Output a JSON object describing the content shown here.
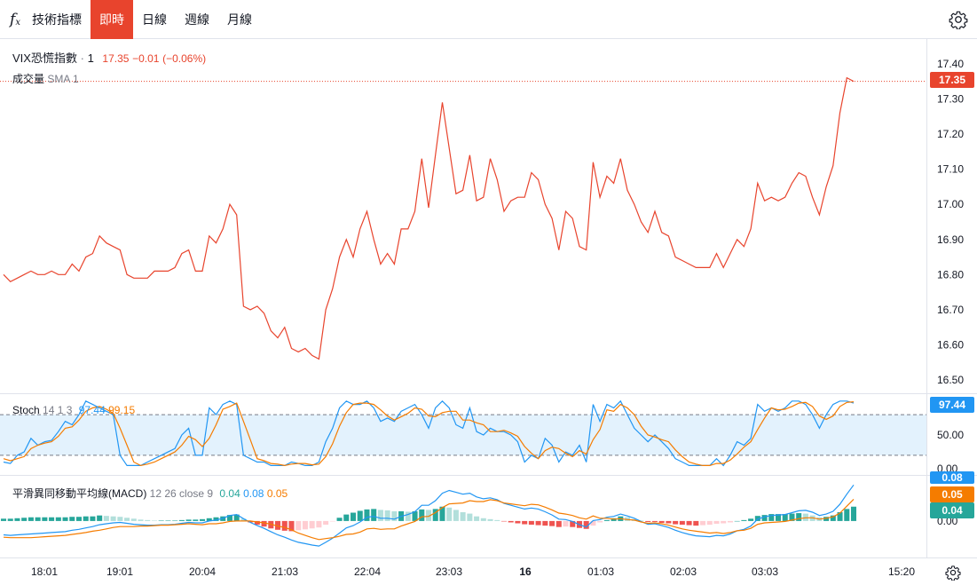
{
  "toolbar": {
    "fx_icon": "fx-icon",
    "indicators_label": "技術指標",
    "timeframes": [
      {
        "label": "即時",
        "active": true
      },
      {
        "label": "日線",
        "active": false
      },
      {
        "label": "週線",
        "active": false
      },
      {
        "label": "月線",
        "active": false
      }
    ],
    "settings_icon": "gear-icon"
  },
  "header": {
    "symbol": "VIX恐慌指數",
    "separator": "·",
    "interval": "1",
    "last": "17.35",
    "change": "−0.01",
    "change_pct": "(−0.06%)",
    "volume_label": "成交量",
    "volume_sma": "SMA 1"
  },
  "stoch": {
    "label": "Stoch",
    "params": "14 1 3",
    "k_value": "97.44",
    "d_value": "99.15",
    "tag": "97.44"
  },
  "macd": {
    "label": "平滑異同移動平均線(MACD)",
    "params": "12 26 close 9",
    "hist_value": "0.04",
    "macd_value": "0.08",
    "signal_value": "0.05",
    "tags": [
      "0.08",
      "0.05",
      "0.04"
    ]
  },
  "price_tag": "17.35",
  "colors": {
    "price_line": "#e8442d",
    "stoch_k": "#2196f3",
    "stoch_d": "#f57c00",
    "macd_line": "#2196f3",
    "signal_line": "#f57c00",
    "hist_up_strong": "#26a69a",
    "hist_up_weak": "#b2dfdb",
    "hist_down_strong": "#ef5350",
    "hist_down_weak": "#ffcdd2",
    "stoch_band": "#e3f2fd"
  },
  "chart_data": [
    {
      "type": "line",
      "title": "",
      "series": [
        {
          "name": "VIX恐慌指數",
          "values": [
            16.8,
            16.78,
            16.79,
            16.8,
            16.81,
            16.8,
            16.8,
            16.81,
            16.8,
            16.8,
            16.83,
            16.81,
            16.85,
            16.86,
            16.91,
            16.89,
            16.88,
            16.87,
            16.8,
            16.79,
            16.79,
            16.79,
            16.81,
            16.81,
            16.81,
            16.82,
            16.86,
            16.87,
            16.81,
            16.81,
            16.91,
            16.89,
            16.93,
            17.0,
            16.97,
            16.71,
            16.7,
            16.71,
            16.69,
            16.64,
            16.62,
            16.65,
            16.59,
            16.58,
            16.59,
            16.57,
            16.56,
            16.7,
            16.76,
            16.85,
            16.9,
            16.85,
            16.93,
            16.98,
            16.9,
            16.83,
            16.86,
            16.83,
            16.93,
            16.93,
            16.98,
            17.13,
            16.99,
            17.14,
            17.29,
            17.16,
            17.03,
            17.04,
            17.14,
            17.01,
            17.02,
            17.13,
            17.07,
            16.98,
            17.01,
            17.02,
            17.02,
            17.09,
            17.07,
            17.0,
            16.96,
            16.87,
            16.98,
            16.96,
            16.88,
            16.87,
            17.12,
            17.02,
            17.08,
            17.06,
            17.13,
            17.04,
            17.0,
            16.95,
            16.92,
            16.98,
            16.92,
            16.91,
            16.85,
            16.84,
            16.83,
            16.82,
            16.82,
            16.82,
            16.86,
            16.82,
            16.86,
            16.9,
            16.88,
            16.93,
            17.06,
            17.01,
            17.02,
            17.01,
            17.02,
            17.06,
            17.09,
            17.08,
            17.02,
            16.97,
            17.05,
            17.11,
            17.26,
            17.36,
            17.35
          ]
        }
      ],
      "ylim": [
        16.47,
        17.45
      ],
      "y_ticks": [
        "17.40",
        "17.30",
        "17.20",
        "17.10",
        "17.00",
        "16.90",
        "16.80",
        "16.70",
        "16.60",
        "16.50"
      ],
      "x_ticks": [
        "18:01",
        "19:01",
        "20:04",
        "21:03",
        "22:04",
        "23:03",
        "16",
        "01:03",
        "02:03",
        "03:03",
        "15:20"
      ],
      "last_value": 17.35
    },
    {
      "type": "line",
      "title": "Stoch 14 1 3",
      "ylim": [
        -5,
        105
      ],
      "y_ticks": [
        "50.00",
        "0.00"
      ],
      "band": [
        20,
        80
      ],
      "series": [
        {
          "name": "K",
          "values": [
            10,
            8,
            20,
            25,
            45,
            35,
            40,
            42,
            55,
            70,
            65,
            80,
            100,
            95,
            90,
            85,
            80,
            20,
            5,
            5,
            5,
            10,
            15,
            20,
            25,
            30,
            50,
            60,
            20,
            20,
            90,
            80,
            95,
            100,
            95,
            20,
            15,
            10,
            10,
            5,
            5,
            5,
            10,
            8,
            5,
            5,
            10,
            40,
            60,
            90,
            100,
            95,
            95,
            100,
            90,
            70,
            75,
            70,
            85,
            90,
            95,
            80,
            60,
            90,
            100,
            90,
            65,
            60,
            90,
            55,
            50,
            60,
            55,
            55,
            50,
            40,
            10,
            20,
            15,
            45,
            35,
            10,
            25,
            20,
            35,
            10,
            95,
            70,
            95,
            90,
            100,
            80,
            60,
            50,
            40,
            50,
            40,
            30,
            15,
            10,
            5,
            5,
            5,
            5,
            15,
            5,
            20,
            40,
            35,
            45,
            95,
            85,
            90,
            85,
            90,
            100,
            100,
            95,
            80,
            60,
            80,
            95,
            100,
            100,
            97
          ]
        },
        {
          "name": "D",
          "values": [
            15,
            12,
            15,
            18,
            30,
            35,
            38,
            40,
            48,
            60,
            62,
            72,
            85,
            90,
            92,
            88,
            82,
            60,
            35,
            10,
            5,
            7,
            10,
            15,
            20,
            25,
            35,
            48,
            43,
            33,
            45,
            65,
            88,
            92,
            97,
            70,
            43,
            15,
            12,
            8,
            7,
            5,
            7,
            8,
            8,
            6,
            7,
            18,
            37,
            63,
            83,
            95,
            97,
            97,
            95,
            87,
            78,
            72,
            77,
            82,
            90,
            88,
            78,
            77,
            83,
            85,
            85,
            72,
            72,
            68,
            65,
            55,
            55,
            57,
            53,
            48,
            33,
            23,
            15,
            27,
            32,
            30,
            23,
            18,
            27,
            22,
            43,
            58,
            87,
            85,
            95,
            90,
            80,
            63,
            50,
            47,
            43,
            40,
            28,
            18,
            10,
            7,
            5,
            5,
            8,
            8,
            13,
            22,
            32,
            40,
            58,
            75,
            90,
            87,
            88,
            92,
            97,
            98,
            92,
            78,
            73,
            78,
            92,
            98,
            99
          ]
        }
      ],
      "last_value_k": 97.44,
      "last_value_d": 99.15
    },
    {
      "type": "bar",
      "title": "平滑異同移動平均線(MACD) 12 26 close 9",
      "ylim": [
        -0.075,
        0.09
      ],
      "y_ticks": [
        "0.00"
      ],
      "series": [
        {
          "name": "Histogram",
          "values": [
            0.005,
            0.005,
            0.006,
            0.007,
            0.008,
            0.008,
            0.008,
            0.008,
            0.008,
            0.008,
            0.009,
            0.009,
            0.01,
            0.01,
            0.012,
            0.011,
            0.01,
            0.009,
            0.007,
            0.005,
            0.003,
            0.002,
            0.001,
            0.001,
            0.001,
            0.001,
            0.002,
            0.003,
            0.003,
            0.004,
            0.006,
            0.008,
            0.01,
            0.013,
            0.014,
            0.005,
            -0.003,
            -0.008,
            -0.012,
            -0.016,
            -0.019,
            -0.021,
            -0.022,
            -0.02,
            -0.018,
            -0.016,
            -0.014,
            -0.008,
            -0.001,
            0.007,
            0.014,
            0.018,
            0.022,
            0.025,
            0.026,
            0.024,
            0.023,
            0.021,
            0.021,
            0.02,
            0.021,
            0.025,
            0.024,
            0.026,
            0.031,
            0.029,
            0.024,
            0.019,
            0.016,
            0.01,
            0.006,
            0.004,
            0.002,
            -0.001,
            -0.003,
            -0.005,
            -0.007,
            -0.008,
            -0.009,
            -0.01,
            -0.011,
            -0.013,
            -0.012,
            -0.013,
            -0.015,
            -0.017,
            -0.01,
            -0.003,
            0.002,
            0.006,
            0.01,
            0.008,
            0.004,
            0.001,
            -0.002,
            -0.002,
            -0.004,
            -0.005,
            -0.007,
            -0.008,
            -0.009,
            -0.01,
            -0.009,
            -0.008,
            -0.006,
            -0.005,
            -0.003,
            0.0,
            0.002,
            0.005,
            0.011,
            0.013,
            0.015,
            0.015,
            0.015,
            0.016,
            0.017,
            0.016,
            0.012,
            0.008,
            0.009,
            0.012,
            0.019,
            0.026,
            0.031
          ]
        },
        {
          "name": "MACD",
          "values": [
            -0.03,
            -0.031,
            -0.03,
            -0.029,
            -0.028,
            -0.027,
            -0.026,
            -0.025,
            -0.024,
            -0.023,
            -0.02,
            -0.018,
            -0.015,
            -0.012,
            -0.008,
            -0.006,
            -0.004,
            -0.003,
            -0.005,
            -0.007,
            -0.008,
            -0.009,
            -0.009,
            -0.008,
            -0.008,
            -0.007,
            -0.005,
            -0.003,
            -0.004,
            -0.004,
            0.0,
            0.002,
            0.006,
            0.012,
            0.014,
            0.005,
            -0.003,
            -0.01,
            -0.016,
            -0.023,
            -0.03,
            -0.035,
            -0.041,
            -0.046,
            -0.049,
            -0.052,
            -0.054,
            -0.046,
            -0.037,
            -0.026,
            -0.015,
            -0.01,
            -0.002,
            0.008,
            0.01,
            0.006,
            0.006,
            0.004,
            0.01,
            0.014,
            0.02,
            0.034,
            0.034,
            0.044,
            0.06,
            0.066,
            0.062,
            0.058,
            0.06,
            0.052,
            0.048,
            0.05,
            0.046,
            0.038,
            0.034,
            0.03,
            0.026,
            0.028,
            0.026,
            0.02,
            0.013,
            0.004,
            0.003,
            -0.001,
            -0.008,
            -0.013,
            0.001,
            0.003,
            0.008,
            0.01,
            0.015,
            0.011,
            0.006,
            -0.001,
            -0.007,
            -0.006,
            -0.01,
            -0.014,
            -0.02,
            -0.025,
            -0.029,
            -0.032,
            -0.033,
            -0.034,
            -0.031,
            -0.032,
            -0.028,
            -0.021,
            -0.018,
            -0.011,
            0.004,
            0.009,
            0.012,
            0.013,
            0.014,
            0.018,
            0.022,
            0.023,
            0.019,
            0.012,
            0.015,
            0.021,
            0.036,
            0.058,
            0.078
          ]
        },
        {
          "name": "Signal",
          "values": [
            -0.035,
            -0.036,
            -0.036,
            -0.036,
            -0.036,
            -0.035,
            -0.034,
            -0.033,
            -0.032,
            -0.031,
            -0.029,
            -0.027,
            -0.025,
            -0.022,
            -0.02,
            -0.017,
            -0.014,
            -0.012,
            -0.012,
            -0.012,
            -0.011,
            -0.011,
            -0.01,
            -0.009,
            -0.009,
            -0.008,
            -0.007,
            -0.006,
            -0.007,
            -0.008,
            -0.006,
            -0.006,
            -0.004,
            -0.001,
            0.0,
            0.0,
            0.0,
            -0.002,
            -0.004,
            -0.007,
            -0.011,
            -0.014,
            -0.019,
            -0.026,
            -0.031,
            -0.036,
            -0.04,
            -0.038,
            -0.036,
            -0.033,
            -0.029,
            -0.028,
            -0.024,
            -0.017,
            -0.016,
            -0.018,
            -0.017,
            -0.017,
            -0.011,
            -0.006,
            -0.001,
            0.009,
            0.01,
            0.018,
            0.029,
            0.037,
            0.038,
            0.039,
            0.044,
            0.042,
            0.042,
            0.046,
            0.044,
            0.039,
            0.037,
            0.035,
            0.033,
            0.036,
            0.035,
            0.03,
            0.024,
            0.017,
            0.015,
            0.012,
            0.007,
            0.004,
            0.011,
            0.006,
            0.006,
            0.004,
            0.005,
            0.003,
            0.002,
            -0.002,
            -0.005,
            -0.004,
            -0.006,
            -0.009,
            -0.013,
            -0.017,
            -0.02,
            -0.022,
            -0.024,
            -0.026,
            -0.025,
            -0.027,
            -0.025,
            -0.021,
            -0.02,
            -0.016,
            -0.007,
            -0.004,
            -0.003,
            -0.002,
            -0.001,
            0.002,
            0.005,
            0.007,
            0.007,
            0.004,
            0.006,
            0.009,
            0.017,
            0.032,
            0.047
          ]
        }
      ],
      "last_hist": 0.04,
      "last_macd": 0.08,
      "last_signal": 0.05
    }
  ]
}
